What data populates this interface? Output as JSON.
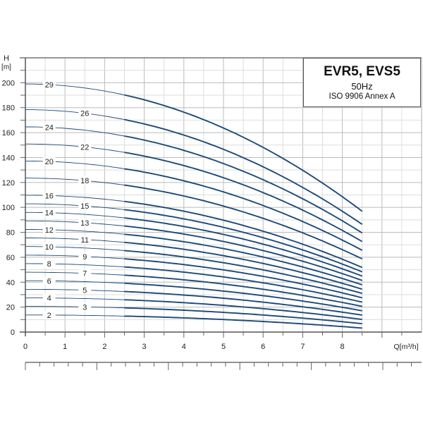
{
  "chart_data": {
    "type": "line",
    "title": "EVR5, EVS5",
    "subtitle": "50Hz",
    "note": "ISO 9906 Annex A",
    "xlabel": "Q[m³/h]",
    "ylabel_top": "H",
    "ylabel_unit": "[m]",
    "xlim": [
      0,
      10
    ],
    "ylim": [
      0,
      220
    ],
    "xticks": [
      0,
      1,
      2,
      3,
      4,
      5,
      6,
      7,
      8
    ],
    "yticks": [
      0,
      20,
      40,
      60,
      80,
      100,
      120,
      140,
      160,
      180,
      200
    ],
    "grid": true,
    "curve_color": "#1d4a78",
    "q_max": 8.5,
    "curves": [
      {
        "stages": "2",
        "h_shutoff": 13.7,
        "h_end": 3.2
      },
      {
        "stages": "3",
        "h_shutoff": 20.6,
        "h_end": 6.7
      },
      {
        "stages": "4",
        "h_shutoff": 27.4,
        "h_end": 10.1
      },
      {
        "stages": "5",
        "h_shutoff": 34.3,
        "h_end": 13.6
      },
      {
        "stages": "6",
        "h_shutoff": 41.2,
        "h_end": 17.1
      },
      {
        "stages": "7",
        "h_shutoff": 48.0,
        "h_end": 20.6
      },
      {
        "stages": "8",
        "h_shutoff": 54.9,
        "h_end": 24.0
      },
      {
        "stages": "9",
        "h_shutoff": 61.7,
        "h_end": 27.5
      },
      {
        "stages": "10",
        "h_shutoff": 68.6,
        "h_end": 31.0
      },
      {
        "stages": "11",
        "h_shutoff": 75.5,
        "h_end": 34.4
      },
      {
        "stages": "12",
        "h_shutoff": 82.3,
        "h_end": 37.9
      },
      {
        "stages": "13",
        "h_shutoff": 89.2,
        "h_end": 41.4
      },
      {
        "stages": "14",
        "h_shutoff": 96.0,
        "h_end": 44.9
      },
      {
        "stages": "15",
        "h_shutoff": 102.9,
        "h_end": 48.3
      },
      {
        "stages": "16",
        "h_shutoff": 109.8,
        "h_end": 51.8
      },
      {
        "stages": "18",
        "h_shutoff": 123.5,
        "h_end": 58.7
      },
      {
        "stages": "20",
        "h_shutoff": 137.2,
        "h_end": 65.6
      },
      {
        "stages": "22",
        "h_shutoff": 150.9,
        "h_end": 72.6
      },
      {
        "stages": "24",
        "h_shutoff": 164.6,
        "h_end": 79.5
      },
      {
        "stages": "26",
        "h_shutoff": 178.4,
        "h_end": 86.4
      },
      {
        "stages": "29",
        "h_shutoff": 199.0,
        "h_end": 96.9
      }
    ]
  }
}
